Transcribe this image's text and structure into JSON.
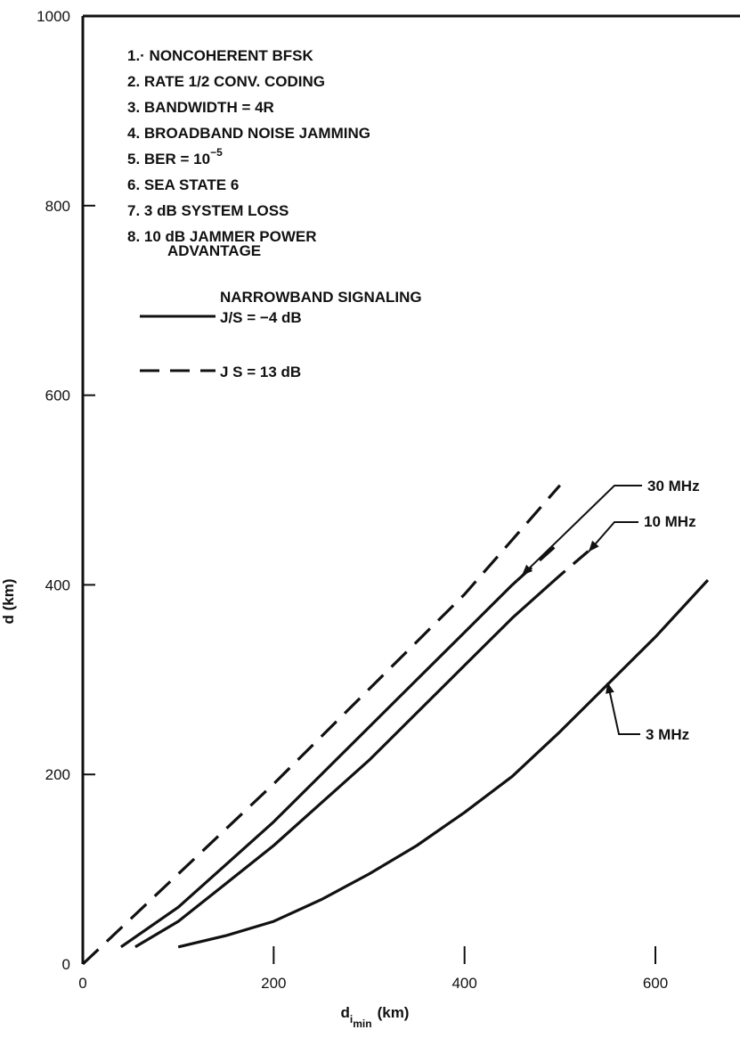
{
  "chart_data": {
    "type": "line",
    "xlabel": "d",
    "xlabel_sub": "i",
    "xlabel_subsub": "min",
    "xlabel_unit": "(km)",
    "ylabel": "d (km)",
    "xlim": [
      0,
      690
    ],
    "ylim": [
      0,
      1000
    ],
    "x_ticks": [
      0,
      200,
      400,
      600
    ],
    "y_ticks": [
      0,
      200,
      400,
      600,
      800,
      1000
    ],
    "grid": false,
    "conditions": [
      "1.· NONCOHERENT BFSK",
      "2. RATE 1/2 CONV. CODING",
      "3. BANDWIDTH = 4R",
      "4. BROADBAND NOISE JAMMING",
      "5. BER = 10",
      "6. SEA STATE 6",
      "7. 3 dB SYSTEM LOSS",
      "8. 10 dB JAMMER POWER",
      "ADVANTAGE"
    ],
    "ber_exponent": "−5",
    "legend": {
      "title": "NARROWBAND SIGNALING",
      "entries": [
        {
          "label": "J/S = −4 dB",
          "style": "solid"
        },
        {
          "label": "J S = 13 dB",
          "style": "dashed"
        }
      ]
    },
    "series": [
      {
        "name": "30 MHz",
        "style": "mixed",
        "x": [
          40,
          100,
          150,
          200,
          250,
          300,
          350,
          400,
          450,
          500
        ],
        "y": [
          18,
          60,
          105,
          150,
          200,
          250,
          300,
          350,
          400,
          445
        ],
        "style_segments": [
          {
            "style": "dashed",
            "from_x": 0,
            "to_x": 40
          },
          {
            "style": "solid",
            "from_x": 40,
            "to_x": 455
          },
          {
            "style": "dashed",
            "from_x": 455,
            "to_x": 500
          }
        ]
      },
      {
        "name": "10 MHz",
        "style": "mixed",
        "x": [
          55,
          100,
          150,
          200,
          250,
          300,
          350,
          400,
          450,
          500,
          535
        ],
        "y": [
          18,
          45,
          85,
          125,
          170,
          215,
          265,
          315,
          365,
          410,
          440
        ],
        "style_segments": [
          {
            "style": "solid",
            "from_x": 55,
            "to_x": 490
          },
          {
            "style": "dashed",
            "from_x": 490,
            "to_x": 535
          }
        ]
      },
      {
        "name": "",
        "style": "dashed",
        "x": [
          0,
          100,
          200,
          300,
          400,
          500
        ],
        "y": [
          0,
          95,
          190,
          290,
          390,
          505
        ]
      },
      {
        "name": "3 MHz",
        "style": "solid",
        "x": [
          100,
          150,
          200,
          250,
          300,
          350,
          400,
          450,
          500,
          550,
          600,
          655
        ],
        "y": [
          18,
          30,
          45,
          68,
          95,
          125,
          160,
          198,
          245,
          295,
          345,
          405
        ]
      }
    ],
    "annotations": [
      {
        "text": "30 MHz",
        "points_to_x": 460,
        "points_to_y": 410
      },
      {
        "text": "10 MHz",
        "points_to_x": 530,
        "points_to_y": 435
      },
      {
        "text": "3 MHz",
        "points_to_x": 550,
        "points_to_y": 297
      }
    ]
  }
}
